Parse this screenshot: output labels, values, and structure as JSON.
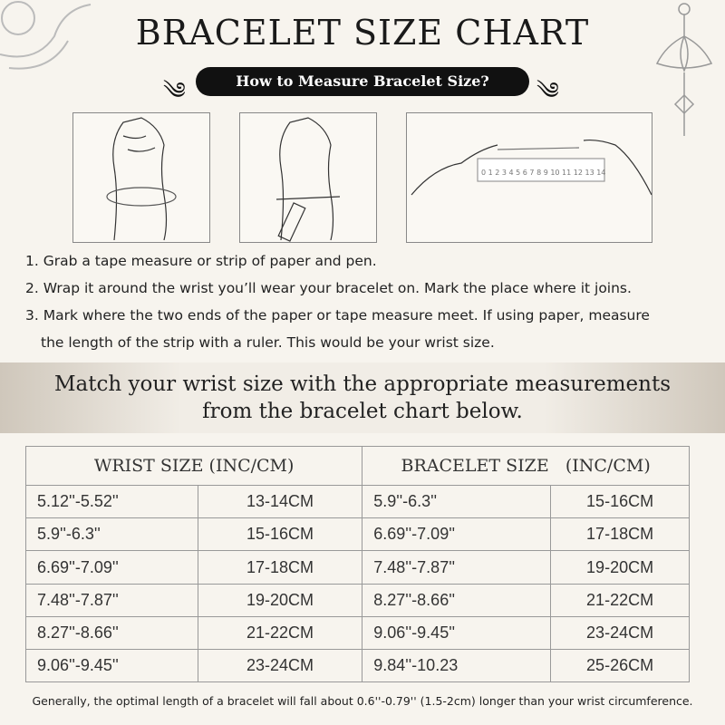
{
  "title": "BRACELET SIZE CHART",
  "subtitle": "How to Measure Bracelet Size?",
  "illustrations": {
    "ruler_numbers": [
      "0",
      "1",
      "2",
      "3",
      "4",
      "5",
      "6",
      "7",
      "8",
      "9",
      "10",
      "11",
      "12",
      "13",
      "14"
    ]
  },
  "steps": [
    "1. Grab a tape measure or strip of paper and pen.",
    "2. Wrap it around the wrist you’ll wear your bracelet on. Mark the place where it joins.",
    "3. Mark where the two ends of the paper or tape measure meet. If using paper, measure",
    "the length of the strip with a ruler. This would be your wrist size."
  ],
  "band": {
    "line1": "Match your wrist size with the appropriate measurements",
    "line2": "from the bracelet chart below."
  },
  "table": {
    "headers": [
      "WRIST SIZE (INC/CM)",
      "BRACELET SIZE   (INC/CM)"
    ],
    "rows": [
      [
        "5.12''-5.52''",
        "13-14CM",
        "5.9''-6.3''",
        "15-16CM"
      ],
      [
        "5.9''-6.3''",
        "15-16CM",
        "6.69''-7.09''",
        "17-18CM"
      ],
      [
        "6.69''-7.09''",
        "17-18CM",
        "7.48''-7.87''",
        "19-20CM"
      ],
      [
        "7.48''-7.87''",
        "19-20CM",
        "8.27''-8.66''",
        "21-22CM"
      ],
      [
        "8.27''-8.66''",
        "21-22CM",
        "9.06''-9.45''",
        "23-24CM"
      ],
      [
        "9.06''-9.45''",
        "23-24CM",
        "9.84''-10.23",
        "25-26CM"
      ]
    ]
  },
  "footer": "Generally, the optimal length of a bracelet will fall about 0.6''-0.79'' (1.5-2cm) longer than your wrist circumference."
}
